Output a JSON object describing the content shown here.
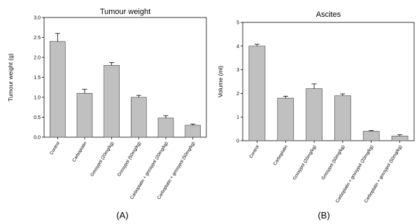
{
  "chart_data": [
    {
      "type": "bar",
      "panel_label": "(A)",
      "title": "Tumour weight",
      "xlabel": "",
      "ylabel": "Tumour weight (g)",
      "ylim": [
        0,
        3.0
      ],
      "yticks": [
        "0.0",
        "0.5",
        "1.0",
        "1.5",
        "2.0",
        "2.5",
        "3.0"
      ],
      "categories": [
        "Control",
        "Carboplatin",
        "Gossypol (20mg/kg)",
        "Gossypol (50mg/kg)",
        "Carboplatin + gossypol (20mg/kg)",
        "Carboplatin + gossypol (50mg/kg)"
      ],
      "values": [
        2.4,
        1.1,
        1.8,
        1.0,
        0.48,
        0.3
      ],
      "errors": [
        0.2,
        0.1,
        0.07,
        0.05,
        0.06,
        0.03
      ],
      "grid": false,
      "bar_color": "#c0c0c0"
    },
    {
      "type": "bar",
      "panel_label": "(B)",
      "title": "Ascites",
      "xlabel": "",
      "ylabel": "Volume (ml)",
      "ylim": [
        0,
        5
      ],
      "yticks": [
        "0",
        "1",
        "2",
        "3",
        "4",
        "5"
      ],
      "categories": [
        "Control",
        "Carboplatin",
        "Gossypol (20mg/kg)",
        "Gossypol (50mg/kg)",
        "Carboplatin + gossypol (20mg/kg)",
        "Carboplatin + gossypol (50mg/kg)"
      ],
      "values": [
        4.0,
        1.8,
        2.2,
        1.9,
        0.4,
        0.2
      ],
      "errors": [
        0.08,
        0.08,
        0.2,
        0.08,
        0.03,
        0.05
      ],
      "grid": false,
      "bar_color": "#c0c0c0"
    }
  ]
}
